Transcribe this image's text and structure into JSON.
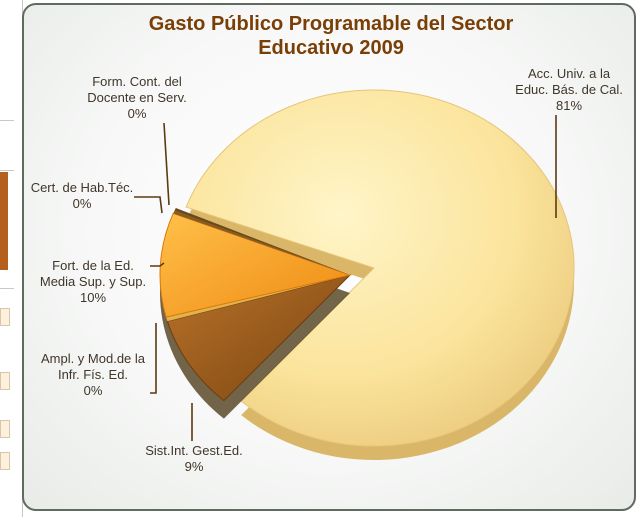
{
  "chart_data": {
    "type": "pie",
    "title_lines": [
      "Gasto Público Programable del Sector",
      "Educativo 2009"
    ],
    "slices": [
      {
        "label_lines": [
          "Acc. Univ. a la",
          "Educ. Bás. de Cal.",
          "81%"
        ],
        "value": 81,
        "color": "#fbe49c"
      },
      {
        "label_lines": [
          "Sist.Int. Gest.Ed.",
          "9%"
        ],
        "value": 9,
        "color": "#a8641c"
      },
      {
        "label_lines": [
          "Ampl. y Mod.de la",
          "Infr. Fís. Ed.",
          "0%"
        ],
        "value": 0,
        "color": "#e4b24a"
      },
      {
        "label_lines": [
          "Fort. de la Ed.",
          "Media Sup. y Sup.",
          "10%"
        ],
        "value": 10,
        "color": "#f7a025"
      },
      {
        "label_lines": [
          "Cert. de Hab.Téc.",
          "0%"
        ],
        "value": 0,
        "color": "#8a5a20"
      },
      {
        "label_lines": [
          "Form. Cont. del",
          "Docente en Serv.",
          "0%"
        ],
        "value": 0,
        "color": "#6b4a1a"
      }
    ],
    "legend": "none"
  },
  "colors": {
    "title": "#7a3f06",
    "frame_border": "#5f6b5f",
    "leader_line": "#5c3a12",
    "shadow": "#5a4a2a"
  }
}
